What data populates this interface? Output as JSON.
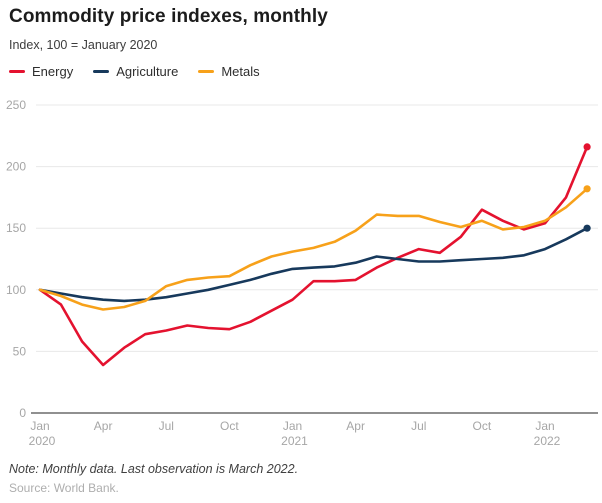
{
  "header": {
    "title": "Commodity price indexes, monthly",
    "subtitle": "Index, 100 = January 2020"
  },
  "legend": {
    "items": [
      {
        "label": "Energy",
        "color": "#e4122f"
      },
      {
        "label": "Agriculture",
        "color": "#17395c"
      },
      {
        "label": "Metals",
        "color": "#f7a11a"
      }
    ]
  },
  "chart_data": {
    "type": "line",
    "x": [
      "2020-01",
      "2020-02",
      "2020-03",
      "2020-04",
      "2020-05",
      "2020-06",
      "2020-07",
      "2020-08",
      "2020-09",
      "2020-10",
      "2020-11",
      "2020-12",
      "2021-01",
      "2021-02",
      "2021-03",
      "2021-04",
      "2021-05",
      "2021-06",
      "2021-07",
      "2021-08",
      "2021-09",
      "2021-10",
      "2021-11",
      "2021-12",
      "2022-01",
      "2022-02",
      "2022-03"
    ],
    "series": [
      {
        "name": "Energy",
        "color": "#e4122f",
        "values": [
          100,
          88,
          58,
          39,
          53,
          64,
          67,
          71,
          69,
          68,
          74,
          83,
          92,
          107,
          107,
          108,
          118,
          126,
          133,
          130,
          143,
          165,
          156,
          149,
          154,
          175,
          216
        ]
      },
      {
        "name": "Agriculture",
        "color": "#17395c",
        "values": [
          100,
          97,
          94,
          92,
          91,
          92,
          94,
          97,
          100,
          104,
          108,
          113,
          117,
          118,
          119,
          122,
          127,
          125,
          123,
          123,
          124,
          125,
          126,
          128,
          133,
          141,
          150
        ]
      },
      {
        "name": "Metals",
        "color": "#f7a11a",
        "values": [
          100,
          95,
          88,
          84,
          86,
          91,
          103,
          108,
          110,
          111,
          120,
          127,
          131,
          134,
          139,
          148,
          161,
          160,
          160,
          155,
          151,
          156,
          149,
          151,
          156,
          167,
          182
        ]
      }
    ],
    "title": "Commodity price indexes, monthly",
    "subtitle": "Index, 100 = January 2020",
    "xlabel": "",
    "ylabel": "",
    "ylim": [
      0,
      250
    ],
    "yticks": [
      0,
      50,
      100,
      150,
      200,
      250
    ],
    "xticks": [
      {
        "month_index": 0,
        "label": "Jan",
        "year": "2020"
      },
      {
        "month_index": 3,
        "label": "Apr"
      },
      {
        "month_index": 6,
        "label": "Jul"
      },
      {
        "month_index": 9,
        "label": "Oct"
      },
      {
        "month_index": 12,
        "label": "Jan",
        "year": "2021"
      },
      {
        "month_index": 15,
        "label": "Apr"
      },
      {
        "month_index": 18,
        "label": "Jul"
      },
      {
        "month_index": 21,
        "label": "Oct"
      },
      {
        "month_index": 24,
        "label": "Jan",
        "year": "2022"
      }
    ],
    "grid": true,
    "legend_position": "top-left",
    "end_dots": true,
    "last_observation": "March 2022"
  },
  "footer": {
    "note": "Note: Monthly data. Last observation is March 2022.",
    "source": "Source: World Bank."
  },
  "style": {
    "grid_color": "#e8e8e8",
    "axis_color": "#6b6b6b",
    "tick_label_color": "#a6a6a6"
  }
}
